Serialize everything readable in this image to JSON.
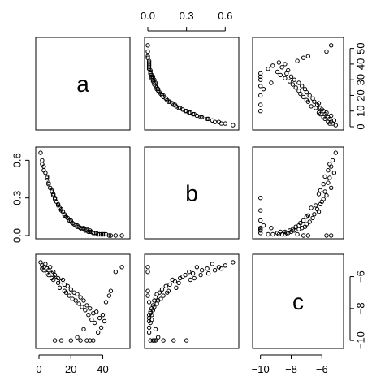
{
  "chart_data": {
    "type": "scatter",
    "variables": [
      "a",
      "b",
      "c"
    ],
    "diagonal_labels": [
      "a",
      "b",
      "c"
    ],
    "ranges": {
      "a": [
        0,
        55
      ],
      "b": [
        0,
        0.68
      ],
      "c": [
        -10.3,
        -4.8
      ]
    },
    "ticks": {
      "a": [
        0,
        20,
        40
      ],
      "b": [
        0.0,
        0.3,
        0.6
      ],
      "c": [
        -10,
        -8,
        -6
      ]
    },
    "tick_labels": {
      "bottom_a": [
        "0",
        "20",
        "40"
      ],
      "top_b": [
        "0.0",
        "0.3",
        "0.6"
      ],
      "bottom_c": [
        "−10",
        "−8",
        "−6"
      ],
      "left_b": [
        "0.0",
        "0.3",
        "0.6"
      ],
      "right_a": [
        "0",
        "10",
        "20",
        "30",
        "40",
        "50"
      ],
      "right_c": [
        "−10",
        "−8",
        "−6"
      ]
    },
    "extra_right_ticks_a": [
      0,
      10,
      20,
      30,
      40,
      50
    ],
    "data": {
      "a": [
        1,
        2,
        3,
        4,
        5,
        6,
        7,
        8,
        9,
        10,
        11,
        12,
        14,
        15,
        16,
        18,
        20,
        22,
        24,
        26,
        28,
        30,
        32,
        34,
        36,
        38,
        40,
        42,
        45,
        48,
        52,
        3,
        6,
        9,
        12,
        16,
        19,
        23,
        27,
        31,
        35,
        39,
        44,
        2,
        5,
        8,
        13,
        17,
        21,
        25,
        29,
        33,
        37,
        41,
        10,
        14,
        20,
        26,
        30,
        34,
        24,
        28,
        32
      ],
      "b": [
        0.66,
        0.6,
        0.55,
        0.5,
        0.46,
        0.42,
        0.38,
        0.35,
        0.32,
        0.29,
        0.27,
        0.25,
        0.21,
        0.19,
        0.17,
        0.14,
        0.11,
        0.09,
        0.07,
        0.06,
        0.05,
        0.04,
        0.03,
        0.02,
        0.02,
        0.01,
        0.01,
        0.01,
        0.0,
        0.0,
        0.0,
        0.52,
        0.41,
        0.33,
        0.24,
        0.16,
        0.12,
        0.08,
        0.05,
        0.03,
        0.02,
        0.01,
        0.0,
        0.57,
        0.47,
        0.36,
        0.22,
        0.15,
        0.1,
        0.07,
        0.04,
        0.03,
        0.01,
        0.01,
        0.3,
        0.2,
        0.12,
        0.06,
        0.05,
        0.02,
        0.08,
        0.06,
        0.04
      ],
      "c": [
        -5.1,
        -5.3,
        -5.4,
        -5.2,
        -5.5,
        -5.6,
        -5.4,
        -5.8,
        -5.7,
        -5.9,
        -6.0,
        -6.1,
        -6.3,
        -6.2,
        -6.5,
        -6.6,
        -6.8,
        -7.0,
        -7.1,
        -7.3,
        -7.5,
        -7.8,
        -8.0,
        -8.3,
        -8.2,
        -8.6,
        -8.4,
        -7.6,
        -6.9,
        -5.7,
        -5.4,
        -5.6,
        -5.9,
        -6.2,
        -6.4,
        -6.9,
        -7.2,
        -7.5,
        -7.9,
        -8.4,
        -8.9,
        -9.2,
        -7.2,
        -5.5,
        -5.8,
        -6.1,
        -6.7,
        -7.0,
        -7.4,
        -7.7,
        -8.1,
        -8.7,
        -9.5,
        -8.8,
        -10.0,
        -10.0,
        -10.0,
        -10.0,
        -10.0,
        -10.0,
        -9.8,
        -9.3,
        -10.0
      ]
    }
  }
}
